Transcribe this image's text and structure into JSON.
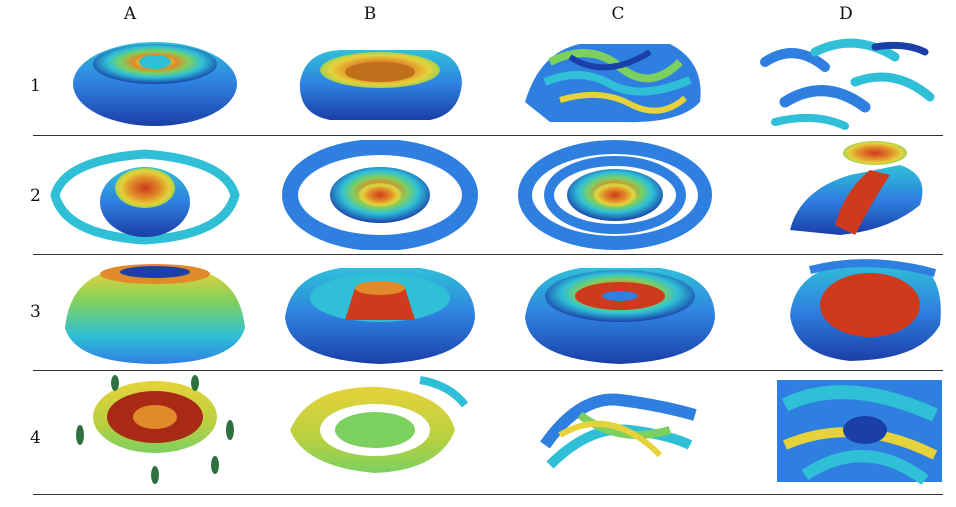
{
  "columns": [
    "A",
    "B",
    "C",
    "D"
  ],
  "rows": [
    "1",
    "2",
    "3",
    "4"
  ],
  "colors": {
    "deep_blue": "#1a3fa8",
    "mid_blue": "#2f7fe0",
    "cyan": "#2fc0d8",
    "green": "#7cd060",
    "yellow": "#e6d23a",
    "orange": "#e08a2a",
    "red": "#d03a1c"
  }
}
